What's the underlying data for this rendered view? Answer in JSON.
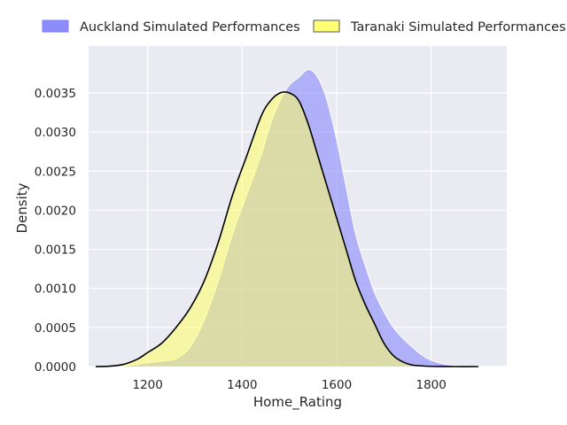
{
  "chart_data": {
    "type": "area",
    "xlabel": "Home_Rating",
    "ylabel": "Density",
    "xlim": [
      1075,
      1960
    ],
    "ylim": [
      0,
      0.0041
    ],
    "xticks": [
      1200,
      1400,
      1600,
      1800
    ],
    "xtick_labels": [
      "1200",
      "1400",
      "1600",
      "1800"
    ],
    "yticks": [
      0,
      0.0005,
      0.001,
      0.0015,
      0.002,
      0.0025,
      0.003,
      0.0035
    ],
    "ytick_labels": [
      "0.0000",
      "0.0005",
      "0.0010",
      "0.0015",
      "0.0020",
      "0.0025",
      "0.0030",
      "0.0035"
    ],
    "grid": true,
    "legend_position": "top",
    "series": [
      {
        "name": "Auckland Simulated Performances",
        "fill_color": "#8080ff",
        "edge_color": "#ffffff",
        "x": [
          1110,
          1150,
          1180,
          1200,
          1230,
          1260,
          1290,
          1320,
          1350,
          1380,
          1410,
          1440,
          1460,
          1480,
          1500,
          1520,
          1540,
          1560,
          1580,
          1600,
          1620,
          1640,
          1660,
          1680,
          1700,
          1720,
          1740,
          1760,
          1780,
          1800,
          1830,
          1860,
          1900,
          1940
        ],
        "y": [
          0,
          1e-05,
          3e-05,
          5e-05,
          7e-05,
          0.0001,
          0.00025,
          0.0006,
          0.0011,
          0.0017,
          0.0022,
          0.0027,
          0.0031,
          0.0034,
          0.0036,
          0.0037,
          0.0038,
          0.0037,
          0.0034,
          0.0029,
          0.0023,
          0.0017,
          0.0013,
          0.00095,
          0.0007,
          0.0005,
          0.00036,
          0.00025,
          0.00015,
          8e-05,
          3e-05,
          1e-05,
          2e-06,
          0
        ]
      },
      {
        "name": "Taranaki Simulated Performances",
        "fill_color": "#ffff66",
        "edge_color": "#000000",
        "x": [
          1090,
          1120,
          1150,
          1180,
          1200,
          1230,
          1260,
          1290,
          1320,
          1350,
          1380,
          1410,
          1440,
          1460,
          1480,
          1500,
          1520,
          1540,
          1560,
          1580,
          1600,
          1620,
          1640,
          1660,
          1680,
          1700,
          1720,
          1740,
          1760,
          1800,
          1850,
          1900
        ],
        "y": [
          0,
          5e-06,
          3e-05,
          0.0001,
          0.00018,
          0.0003,
          0.0005,
          0.00075,
          0.0011,
          0.0016,
          0.0022,
          0.0027,
          0.0032,
          0.0034,
          0.0035,
          0.0035,
          0.0034,
          0.0031,
          0.0027,
          0.0023,
          0.0019,
          0.0015,
          0.0011,
          0.0008,
          0.00055,
          0.0003,
          0.00014,
          6e-05,
          2e-05,
          3e-06,
          0,
          0
        ]
      }
    ]
  }
}
